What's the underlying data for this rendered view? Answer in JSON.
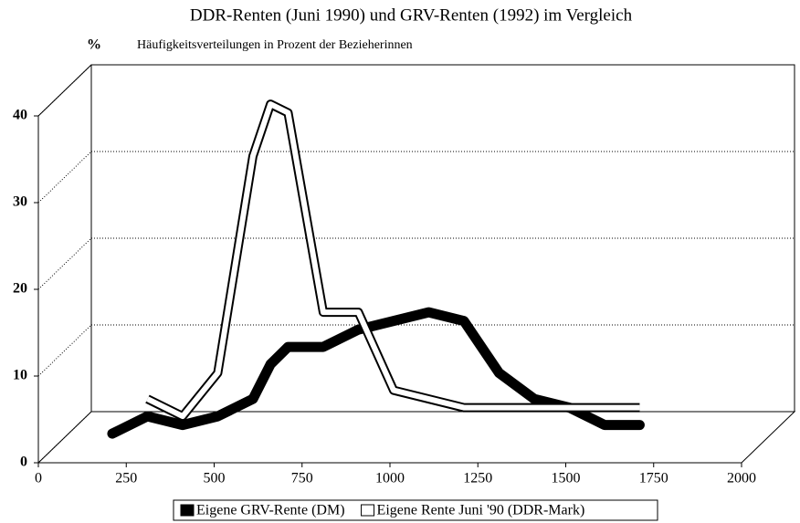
{
  "chart_data": {
    "type": "line",
    "title": "DDR-Renten (Juni 1990) und GRV-Renten (1992) im Vergleich",
    "ylabel": "%",
    "subtitle": "Häufigkeitsverteilungen in Prozent der Bezieherinnen",
    "x": [
      150,
      250,
      350,
      450,
      550,
      600,
      650,
      750,
      850,
      950,
      1050,
      1150,
      1250,
      1350,
      1450,
      1550,
      1650
    ],
    "series": [
      {
        "name": "Eigene GRV-Rente (DM)",
        "color": "#000000",
        "values": [
          1,
          3,
          2,
          3,
          5,
          9,
          11,
          11,
          13,
          14,
          15,
          14,
          8,
          5,
          4,
          2,
          2
        ]
      },
      {
        "name": "Eigene Rente Juni '90 (DDR-Mark)",
        "color": "#ffffff",
        "values": [
          null,
          5,
          3,
          8,
          33,
          39,
          38,
          15,
          15,
          6,
          5,
          4,
          4,
          4,
          4,
          4,
          4
        ]
      }
    ],
    "xlim": [
      0,
      2000
    ],
    "xticks": [
      0,
      250,
      500,
      750,
      1000,
      1250,
      1500,
      1750,
      2000
    ],
    "ylim": [
      0,
      40
    ],
    "yticks": [
      0,
      10,
      20,
      30,
      40
    ],
    "grid": true
  }
}
